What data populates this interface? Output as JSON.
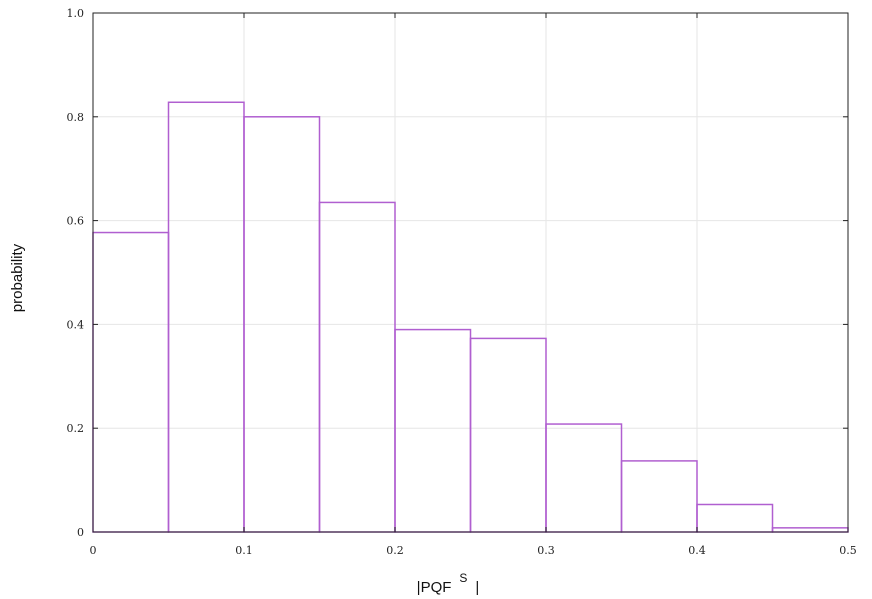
{
  "chart_data": {
    "type": "bar",
    "title": "",
    "xlabel_main": "|PQF",
    "xlabel_sup": "S",
    "xlabel_end": "|",
    "ylabel": "probability",
    "bin_edges": [
      0,
      0.05,
      0.1,
      0.15,
      0.2,
      0.25,
      0.3,
      0.35,
      0.4,
      0.45,
      0.5
    ],
    "values": [
      0.577,
      0.828,
      0.8,
      0.635,
      0.39,
      0.373,
      0.208,
      0.137,
      0.053,
      0.008
    ],
    "xlim": [
      0,
      0.5
    ],
    "ylim": [
      0,
      1.0
    ],
    "xticks": [
      "0",
      "0.1",
      "0.2",
      "0.3",
      "0.4",
      "0.5"
    ],
    "yticks": [
      "0",
      "0.2",
      "0.4",
      "0.6",
      "0.8",
      "1.0"
    ],
    "grid": true,
    "bar_color": "#b05fd0",
    "grid_color": "#e6e6e6",
    "axis_color": "#222222"
  }
}
